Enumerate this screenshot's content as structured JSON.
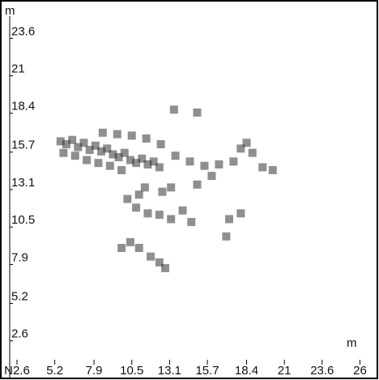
{
  "chart_data": {
    "type": "scatter",
    "y_unit": "m",
    "x_unit": "m",
    "xlim": [
      2.1,
      27.4
    ],
    "ylim": [
      -0.4,
      25.7
    ],
    "xticks": [
      {
        "value": 2.6,
        "label": "N2.6"
      },
      5.2,
      7.9,
      10.5,
      13.1,
      15.7,
      18.4,
      21.0,
      23.6,
      {
        "value": 26.2,
        "label": "26"
      }
    ],
    "yticks": [
      2.6,
      5.2,
      7.9,
      10.5,
      13.1,
      15.7,
      18.4,
      21.0,
      23.6
    ],
    "color": "#333333",
    "x": [
      5.6,
      6.0,
      6.4,
      6.8,
      7.2,
      7.6,
      8.0,
      8.4,
      8.8,
      9.2,
      9.6,
      10.0,
      10.4,
      10.8,
      11.2,
      11.6,
      12.0,
      12.4,
      5.8,
      6.6,
      7.4,
      8.2,
      9.0,
      9.8,
      8.5,
      9.5,
      10.5,
      11.5,
      12.5,
      13.5,
      14.5,
      15.5,
      16.5,
      17.5,
      18.0,
      18.4,
      18.8,
      19.5,
      20.2,
      16.0,
      15.0,
      13.2,
      12.6,
      11.0,
      10.2,
      10.8,
      11.6,
      12.4,
      13.2,
      14.0,
      14.6,
      11.4,
      10.4,
      11.0,
      11.8,
      12.4,
      12.8,
      9.8,
      17.2,
      17.0,
      18.0,
      13.4,
      15.0
    ],
    "y": [
      16.0,
      15.8,
      16.1,
      15.6,
      15.9,
      15.4,
      15.7,
      15.3,
      15.5,
      15.1,
      14.9,
      15.2,
      14.7,
      14.5,
      14.8,
      14.4,
      14.6,
      14.2,
      15.2,
      15.0,
      14.7,
      14.5,
      14.3,
      14.0,
      16.6,
      16.5,
      16.4,
      16.2,
      15.8,
      15.0,
      14.6,
      14.3,
      14.4,
      14.6,
      15.5,
      15.9,
      15.2,
      14.2,
      14.0,
      13.6,
      13.0,
      12.8,
      12.5,
      12.3,
      12.0,
      11.4,
      11.0,
      10.9,
      10.6,
      11.2,
      10.4,
      12.8,
      9.0,
      8.6,
      8.0,
      7.6,
      7.2,
      8.6,
      10.6,
      9.4,
      11.0,
      18.2,
      18.0
    ]
  }
}
